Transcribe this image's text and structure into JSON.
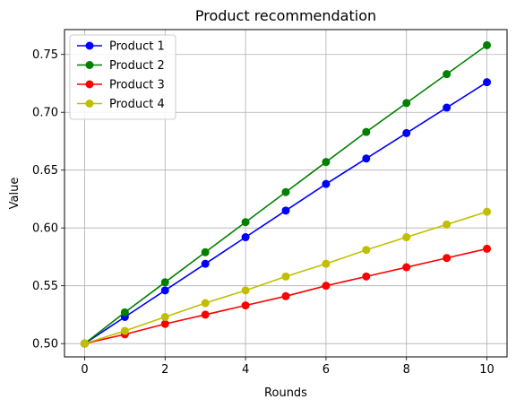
{
  "chart_data": {
    "type": "line",
    "title": "Product recommendation",
    "xlabel": "Rounds",
    "ylabel": "Value",
    "x": [
      0,
      1,
      2,
      3,
      4,
      5,
      6,
      7,
      8,
      9,
      10
    ],
    "xlim": [
      -0.5,
      10.5
    ],
    "ylim": [
      0.4885,
      0.7715
    ],
    "xticks": [
      0,
      2,
      4,
      6,
      8,
      10
    ],
    "yticks": [
      0.5,
      0.55,
      0.6,
      0.65,
      0.7,
      0.75
    ],
    "xtick_labels": [
      "0",
      "2",
      "4",
      "6",
      "8",
      "10"
    ],
    "ytick_labels": [
      "0.50",
      "0.55",
      "0.60",
      "0.65",
      "0.70",
      "0.75"
    ],
    "grid": true,
    "legend_position": "top-left",
    "series": [
      {
        "name": "Product 1",
        "color": "#0000ff",
        "values": [
          0.5,
          0.523,
          0.546,
          0.569,
          0.592,
          0.615,
          0.638,
          0.66,
          0.682,
          0.704,
          0.726
        ]
      },
      {
        "name": "Product 2",
        "color": "#008000",
        "values": [
          0.5,
          0.527,
          0.553,
          0.579,
          0.605,
          0.631,
          0.657,
          0.683,
          0.708,
          0.733,
          0.758
        ]
      },
      {
        "name": "Product 3",
        "color": "#ff0000",
        "values": [
          0.5,
          0.508,
          0.517,
          0.525,
          0.533,
          0.541,
          0.55,
          0.558,
          0.566,
          0.574,
          0.582
        ]
      },
      {
        "name": "Product 4",
        "color": "#bfbf00",
        "values": [
          0.5,
          0.511,
          0.523,
          0.535,
          0.546,
          0.558,
          0.569,
          0.581,
          0.592,
          0.603,
          0.614
        ]
      }
    ]
  }
}
